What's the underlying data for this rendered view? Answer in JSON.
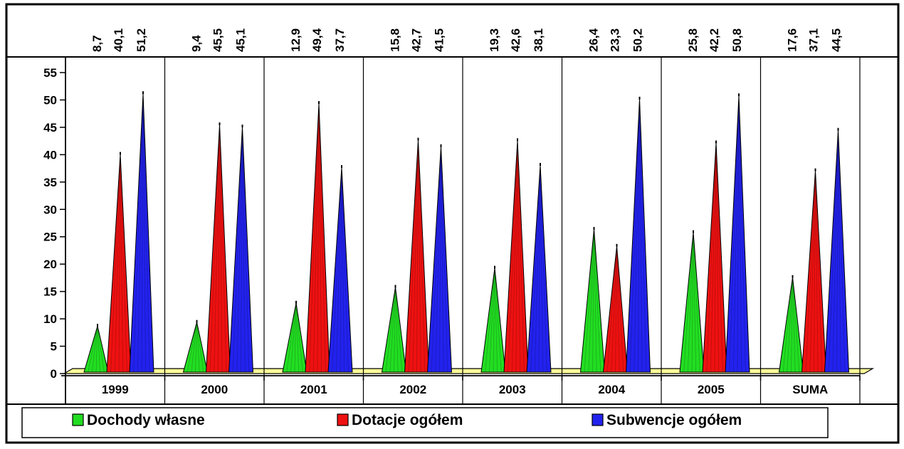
{
  "chart_data": {
    "type": "bar",
    "categories": [
      "1999",
      "2000",
      "2001",
      "2002",
      "2003",
      "2004",
      "2005",
      "SUMA"
    ],
    "series": [
      {
        "name": "Dochody własne",
        "color": "#22dd22",
        "values": [
          8.7,
          9.4,
          12.9,
          15.8,
          19.3,
          26.4,
          25.8,
          17.6
        ]
      },
      {
        "name": "Dotacje ogółem",
        "color": "#ee1111",
        "values": [
          40.1,
          45.5,
          49.4,
          42.7,
          42.6,
          23.3,
          42.2,
          37.1
        ]
      },
      {
        "name": "Subwencje ogółem",
        "color": "#2222ee",
        "values": [
          51.2,
          45.1,
          37.7,
          41.5,
          38.1,
          50.2,
          50.8,
          44.5
        ]
      }
    ],
    "data_labels": [
      [
        "8,7",
        "40,1",
        "51,2"
      ],
      [
        "9,4",
        "45,5",
        "45,1"
      ],
      [
        "12,9",
        "49,4",
        "37,7"
      ],
      [
        "15,8",
        "42,7",
        "41,5"
      ],
      [
        "19,3",
        "42,6",
        "38,1"
      ],
      [
        "26,4",
        "23,3",
        "50,2"
      ],
      [
        "25,8",
        "42,2",
        "50,8"
      ],
      [
        "17,6",
        "37,1",
        "44,5"
      ]
    ],
    "y_ticks": [
      "0",
      "5",
      "10",
      "15",
      "20",
      "25",
      "30",
      "35",
      "40",
      "45",
      "50",
      "55"
    ],
    "ylim": [
      0,
      55
    ],
    "grid": false,
    "legend_position": "bottom",
    "mark_shape": "cone",
    "floor_color": "#ffff99"
  }
}
